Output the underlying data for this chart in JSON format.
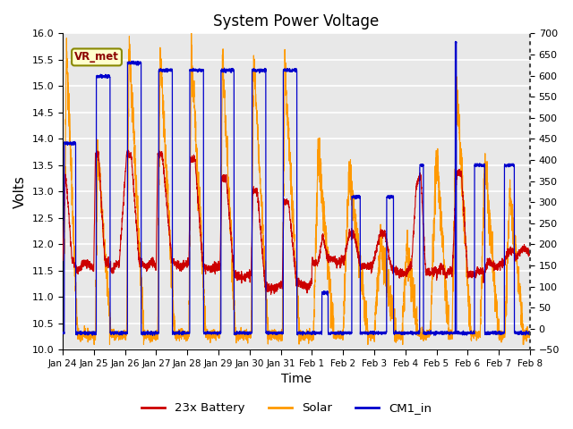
{
  "title": "System Power Voltage",
  "xlabel": "Time",
  "ylabel_left": "Volts",
  "ylim_left": [
    10.0,
    16.0
  ],
  "ylim_right": [
    -50,
    700
  ],
  "yticks_left": [
    10.0,
    10.5,
    11.0,
    11.5,
    12.0,
    12.5,
    13.0,
    13.5,
    14.0,
    14.5,
    15.0,
    15.5,
    16.0
  ],
  "yticks_right": [
    -50,
    0,
    50,
    100,
    150,
    200,
    250,
    300,
    350,
    400,
    450,
    500,
    550,
    600,
    650,
    700
  ],
  "xtick_labels": [
    "Jan 24",
    "Jan 25",
    "Jan 26",
    "Jan 27",
    "Jan 28",
    "Jan 29",
    "Jan 30",
    "Jan 31",
    "Feb 1",
    "Feb 2",
    "Feb 3",
    "Feb 4",
    "Feb 5",
    "Feb 6",
    "Feb 7",
    "Feb 8"
  ],
  "annotation_text": "VR_met",
  "bg_color": "#e8e8e8",
  "grid_color": "#ffffff",
  "legend_labels": [
    "23x Battery",
    "Solar",
    "CM1_in"
  ],
  "battery_color": "#cc0000",
  "solar_color": "#ff9900",
  "cm1_color": "#0000cc",
  "n_points": 4000,
  "days": 15
}
